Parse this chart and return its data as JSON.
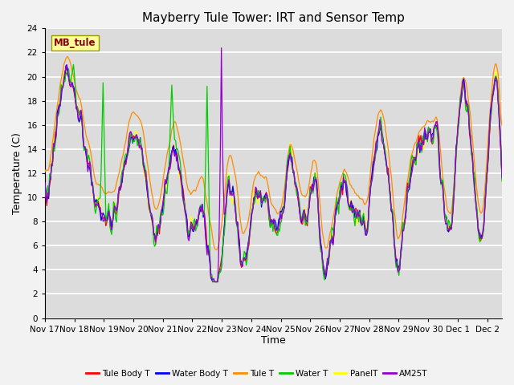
{
  "title": "Mayberry Tule Tower: IRT and Sensor Temp",
  "xlabel": "Time",
  "ylabel": "Temperature (C)",
  "ylim": [
    0,
    24
  ],
  "yticks": [
    0,
    2,
    4,
    6,
    8,
    10,
    12,
    14,
    16,
    18,
    20,
    22,
    24
  ],
  "x_labels": [
    "Nov 17",
    "Nov 18",
    "Nov 19",
    "Nov 20",
    "Nov 21",
    "Nov 22",
    "Nov 23",
    "Nov 24",
    "Nov 25",
    "Nov 26",
    "Nov 27",
    "Nov 28",
    "Nov 29",
    "Nov 30",
    "Dec 1",
    "Dec 2"
  ],
  "watermark_text": "MB_tule",
  "watermark_color": "#8B0000",
  "watermark_bg": "#FFFF99",
  "legend_entries": [
    "Tule Body T",
    "Water Body T",
    "Tule T",
    "Water T",
    "PanelT",
    "AM25T"
  ],
  "line_colors": [
    "#FF0000",
    "#0000FF",
    "#FF8C00",
    "#00CC00",
    "#FFFF00",
    "#9400D3"
  ],
  "bg_color": "#DCDCDC",
  "grid_color": "#FFFFFF",
  "title_fontsize": 11
}
